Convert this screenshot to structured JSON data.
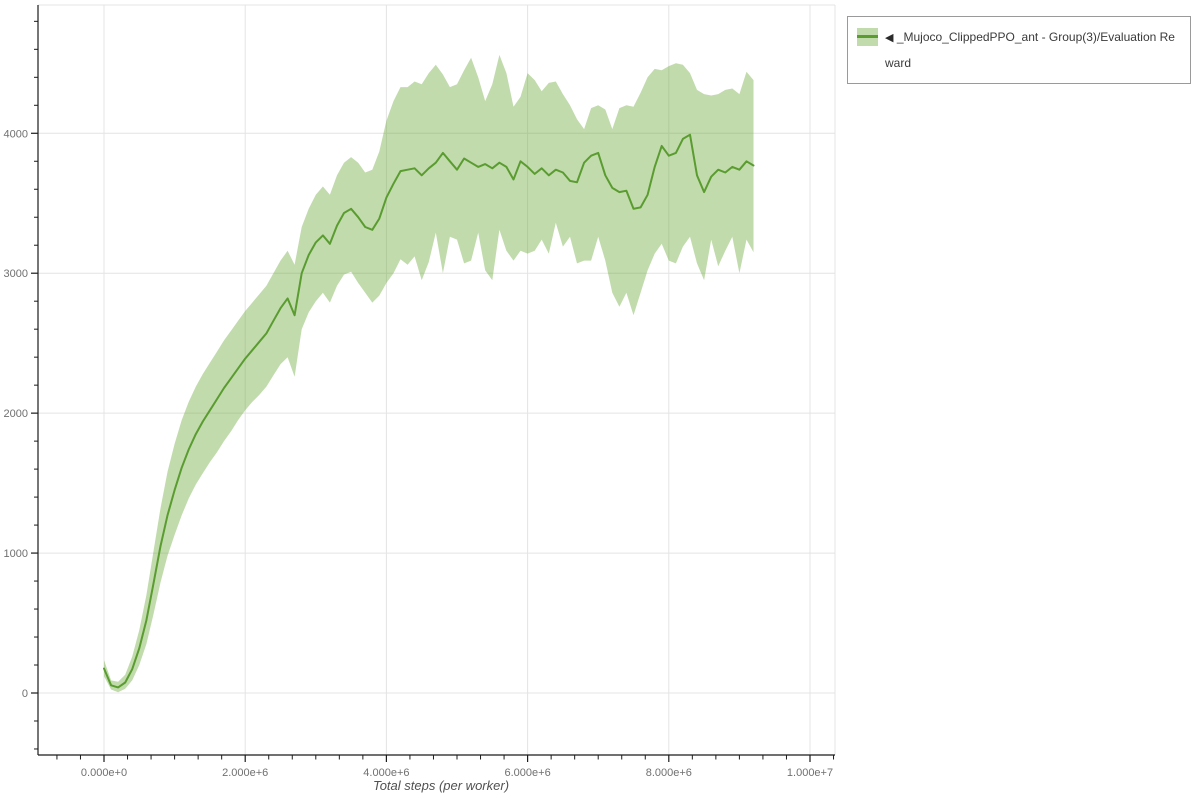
{
  "page": {
    "background": "#ffffff"
  },
  "colors": {
    "line": "#5a9c30",
    "band": "rgba(101,166,51,0.40)",
    "grid": "#e4e4e4",
    "axis": "#1b1b1b",
    "tick_label": "#707070",
    "axis_label": "#515151",
    "legend_border": "#9a9a9a",
    "legend_text": "#3a3a3a"
  },
  "legend": {
    "marker": "◀",
    "label": "_Mujoco_ClippedPPO_ant - Group(3)/Evaluation Reward"
  },
  "chart_data": {
    "type": "line",
    "title": "",
    "xlabel": "Total steps (per worker)",
    "ylabel": "",
    "grid": true,
    "legend_position": "top-right-outside",
    "x_ticks": [
      {
        "value": 0,
        "label": "0.000e+0"
      },
      {
        "value": 2000000,
        "label": "2.000e+6"
      },
      {
        "value": 4000000,
        "label": "4.000e+6"
      },
      {
        "value": 6000000,
        "label": "6.000e+6"
      },
      {
        "value": 8000000,
        "label": "8.000e+6"
      },
      {
        "value": 10000000,
        "label": "1.000e+7"
      }
    ],
    "y_ticks": [
      {
        "value": 0,
        "label": "0"
      },
      {
        "value": 1000,
        "label": "1000"
      },
      {
        "value": 2000,
        "label": "2000"
      },
      {
        "value": 3000,
        "label": "3000"
      },
      {
        "value": 4000,
        "label": "4000"
      }
    ],
    "x_range": [
      -930000,
      10350000
    ],
    "y_range": [
      -440,
      4920
    ],
    "series": [
      {
        "name": "_Mujoco_ClippedPPO_ant - Group(3)/Evaluation Reward",
        "legend_marker": "◀",
        "x_start": 0,
        "x_step": 100000,
        "mean": [
          175,
          55,
          40,
          75,
          170,
          320,
          520,
          780,
          1050,
          1270,
          1450,
          1610,
          1740,
          1850,
          1940,
          2020,
          2100,
          2180,
          2250,
          2320,
          2390,
          2450,
          2510,
          2570,
          2660,
          2750,
          2820,
          2700,
          3000,
          3130,
          3220,
          3270,
          3210,
          3340,
          3430,
          3460,
          3400,
          3330,
          3310,
          3390,
          3540,
          3640,
          3730,
          3740,
          3750,
          3700,
          3750,
          3790,
          3860,
          3800,
          3740,
          3820,
          3790,
          3760,
          3780,
          3750,
          3790,
          3760,
          3670,
          3800,
          3760,
          3710,
          3750,
          3700,
          3740,
          3720,
          3660,
          3650,
          3790,
          3840,
          3860,
          3700,
          3610,
          3580,
          3590,
          3460,
          3470,
          3560,
          3760,
          3910,
          3840,
          3860,
          3960,
          3990,
          3700,
          3580,
          3690,
          3740,
          3720,
          3760,
          3740,
          3800,
          3770
        ],
        "upper": [
          235,
          90,
          80,
          130,
          260,
          450,
          700,
          1010,
          1320,
          1580,
          1780,
          1950,
          2080,
          2190,
          2280,
          2360,
          2440,
          2520,
          2590,
          2660,
          2730,
          2790,
          2850,
          2910,
          3000,
          3090,
          3160,
          3060,
          3330,
          3460,
          3560,
          3620,
          3560,
          3700,
          3790,
          3830,
          3790,
          3720,
          3740,
          3870,
          4090,
          4230,
          4330,
          4330,
          4370,
          4350,
          4430,
          4490,
          4420,
          4330,
          4350,
          4450,
          4540,
          4400,
          4230,
          4350,
          4560,
          4430,
          4190,
          4260,
          4430,
          4380,
          4300,
          4360,
          4370,
          4280,
          4200,
          4100,
          4030,
          4180,
          4200,
          4170,
          4030,
          4180,
          4200,
          4190,
          4290,
          4400,
          4460,
          4450,
          4480,
          4500,
          4490,
          4430,
          4310,
          4280,
          4270,
          4280,
          4310,
          4320,
          4280,
          4440,
          4380
        ],
        "lower": [
          120,
          25,
          5,
          30,
          90,
          200,
          350,
          560,
          790,
          980,
          1130,
          1270,
          1390,
          1490,
          1570,
          1650,
          1720,
          1800,
          1870,
          1950,
          2020,
          2080,
          2130,
          2190,
          2270,
          2350,
          2400,
          2260,
          2600,
          2720,
          2800,
          2860,
          2790,
          2910,
          2990,
          3010,
          2930,
          2860,
          2790,
          2840,
          2930,
          3000,
          3100,
          3060,
          3120,
          2950,
          3080,
          3290,
          3000,
          3260,
          3240,
          3070,
          3090,
          3290,
          3020,
          2950,
          3310,
          3160,
          3090,
          3160,
          3140,
          3160,
          3240,
          3140,
          3360,
          3190,
          3260,
          3070,
          3090,
          3090,
          3260,
          3090,
          2860,
          2760,
          2860,
          2700,
          2860,
          3020,
          3140,
          3210,
          3090,
          3070,
          3190,
          3260,
          3070,
          2950,
          3240,
          3050,
          3160,
          3260,
          3000,
          3240,
          3150
        ]
      }
    ]
  }
}
